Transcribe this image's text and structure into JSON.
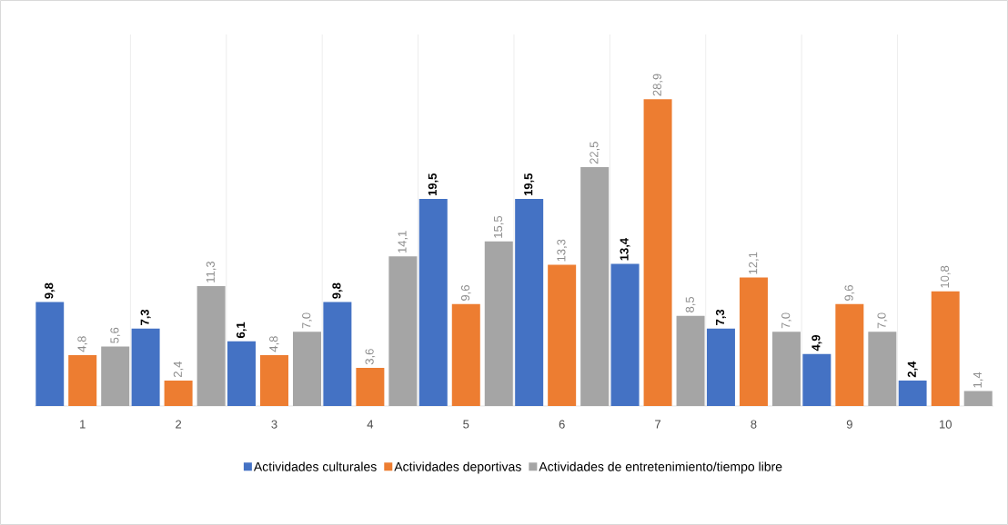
{
  "chart_data": {
    "type": "bar",
    "categories": [
      "1",
      "2",
      "3",
      "4",
      "5",
      "6",
      "7",
      "8",
      "9",
      "10"
    ],
    "series": [
      {
        "name": "Actividades culturales",
        "color": "#4472c4",
        "values": [
          9.8,
          7.3,
          6.1,
          9.8,
          19.5,
          19.5,
          13.4,
          7.3,
          4.9,
          2.4
        ],
        "value_labels": [
          "9,8",
          "7,3",
          "6,1",
          "9,8",
          "19,5",
          "19,5",
          "13,4",
          "7,3",
          "4,9",
          "2,4"
        ]
      },
      {
        "name": "Actividades deportivas",
        "color": "#ed7d31",
        "values": [
          4.8,
          2.4,
          4.8,
          3.6,
          9.6,
          13.3,
          28.9,
          12.1,
          9.6,
          10.8
        ],
        "value_labels": [
          "4,8",
          "2,4",
          "4,8",
          "3,6",
          "9,6",
          "13,3",
          "28,9",
          "12,1",
          "9,6",
          "10,8"
        ]
      },
      {
        "name": "Actividades de entretenimiento/tiempo libre",
        "color": "#a5a5a5",
        "values": [
          5.6,
          11.3,
          7.0,
          14.1,
          15.5,
          22.5,
          8.5,
          7.0,
          7.0,
          1.4
        ],
        "value_labels": [
          "5,6",
          "11,3",
          "7,0",
          "14,1",
          "15,5",
          "22,5",
          "8,5",
          "7,0",
          "7,0",
          "1,4"
        ]
      }
    ],
    "ylim": [
      0,
      35
    ],
    "tick_labels": "x",
    "grid": "x",
    "legend": "bottom"
  }
}
